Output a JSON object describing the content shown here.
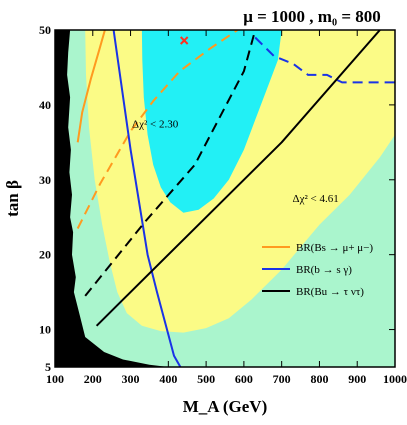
{
  "chart_data": {
    "type": "line",
    "title": "μ = 1000 ,  m₀ = 800",
    "xlabel": "M_A (GeV)",
    "ylabel": "tan β",
    "xlim": [
      100,
      1000
    ],
    "ylim": [
      5,
      50
    ],
    "xticks": [
      100,
      200,
      300,
      400,
      500,
      600,
      700,
      800,
      900,
      1000
    ],
    "yticks": [
      5,
      10,
      20,
      30,
      40,
      50
    ],
    "grid": false,
    "colors": {
      "excluded": "#000000",
      "outer_region": "#aaf5cd",
      "middle_region": "#fbfb86",
      "inner_region": "#22f0f5",
      "bs_mumu": "#ff9a1f",
      "b_sgamma": "#1a33e6",
      "bu_taunu": "#000000",
      "marker": "#ff3020"
    },
    "regions": [
      {
        "name": "excluded",
        "points": [
          [
            100,
            50
          ],
          [
            140,
            50
          ],
          [
            135,
            47
          ],
          [
            132,
            44
          ],
          [
            140,
            41
          ],
          [
            135,
            37
          ],
          [
            142,
            34
          ],
          [
            138,
            31
          ],
          [
            145,
            28
          ],
          [
            140,
            25
          ],
          [
            148,
            23
          ],
          [
            145,
            20
          ],
          [
            155,
            17
          ],
          [
            150,
            15
          ],
          [
            165,
            12
          ],
          [
            180,
            9
          ],
          [
            230,
            7
          ],
          [
            280,
            6
          ],
          [
            350,
            5.3
          ],
          [
            400,
            5
          ],
          [
            100,
            5
          ]
        ]
      },
      {
        "name": "Δχ² < 4.61",
        "points": [
          [
            180,
            50
          ],
          [
            600,
            50
          ],
          [
            1000,
            50
          ],
          [
            1000,
            36
          ],
          [
            960,
            33
          ],
          [
            880,
            28
          ],
          [
            800,
            24
          ],
          [
            700,
            18
          ],
          [
            620,
            14
          ],
          [
            560,
            11.5
          ],
          [
            500,
            10.2
          ],
          [
            440,
            9.6
          ],
          [
            380,
            9.8
          ],
          [
            330,
            10.5
          ],
          [
            290,
            12.2
          ],
          [
            265,
            15
          ],
          [
            245,
            19
          ],
          [
            225,
            24
          ],
          [
            205,
            30
          ],
          [
            190,
            37
          ],
          [
            182,
            44
          ],
          [
            180,
            50
          ]
        ]
      },
      {
        "name": "Δχ² < 2.30",
        "points": [
          [
            330,
            50
          ],
          [
            700,
            50
          ],
          [
            690,
            46
          ],
          [
            660,
            42
          ],
          [
            630,
            38
          ],
          [
            600,
            34
          ],
          [
            560,
            30
          ],
          [
            520,
            27.5
          ],
          [
            480,
            26
          ],
          [
            440,
            25.6
          ],
          [
            405,
            27
          ],
          [
            380,
            29
          ],
          [
            360,
            32
          ],
          [
            345,
            36
          ],
          [
            335,
            41
          ],
          [
            331,
            46
          ],
          [
            330,
            50
          ]
        ]
      }
    ],
    "series": [
      {
        "name": "BR(B_s → μ⁺ μ⁻)",
        "segments": [
          {
            "style": "solid",
            "points": [
              [
                160,
                35
              ],
              [
                172,
                39
              ],
              [
                195,
                43.5
              ],
              [
                218,
                47.5
              ],
              [
                232,
                50
              ]
            ]
          },
          {
            "style": "dashed",
            "points": [
              [
                160,
                23.5
              ],
              [
                220,
                29.5
              ],
              [
                300,
                36.5
              ],
              [
                360,
                40.5
              ],
              [
                430,
                44.5
              ],
              [
                510,
                47.5
              ],
              [
                583,
                50
              ]
            ]
          }
        ]
      },
      {
        "name": "BR(b → s γ)",
        "segments": [
          {
            "style": "solid",
            "points": [
              [
                255,
                50
              ],
              [
                300,
                34
              ],
              [
                345,
                20
              ],
              [
                370,
                15
              ],
              [
                415,
                6.5
              ],
              [
                432,
                5
              ]
            ]
          },
          {
            "style": "dashed",
            "points": [
              [
                630,
                49
              ],
              [
                680,
                46.5
              ],
              [
                730,
                45.5
              ],
              [
                770,
                44
              ],
              [
                820,
                44
              ],
              [
                860,
                43
              ],
              [
                920,
                43
              ],
              [
                1000,
                43
              ]
            ]
          }
        ]
      },
      {
        "name": "BR(B_u → τ ν_τ)",
        "segments": [
          {
            "style": "solid",
            "points": [
              [
                210,
                10.5
              ],
              [
                280,
                14
              ],
              [
                450,
                22.5
              ],
              [
                700,
                35
              ],
              [
                960,
                50
              ]
            ]
          },
          {
            "style": "dashed",
            "points": [
              [
                180,
                14.5
              ],
              [
                340,
                24.5
              ],
              [
                470,
                32
              ],
              [
                600,
                44.5
              ],
              [
                630,
                50
              ]
            ]
          }
        ]
      }
    ],
    "markers": [
      {
        "x": 442,
        "y": 48.6,
        "shape": "x"
      }
    ],
    "annotations": [
      {
        "text": "Δχ² < 2.30",
        "x": 365,
        "y": 37
      },
      {
        "text": "Δχ² < 4.61",
        "x": 790,
        "y": 27
      }
    ],
    "legend": {
      "position": "bottom-right",
      "entries": [
        {
          "label": "BR(Bs → μ+ μ−)",
          "color_key": "bs_mumu"
        },
        {
          "label": "BR(b → s γ)",
          "color_key": "b_sgamma"
        },
        {
          "label": "BR(Bu → τ ντ)",
          "color_key": "bu_taunu"
        }
      ]
    }
  }
}
